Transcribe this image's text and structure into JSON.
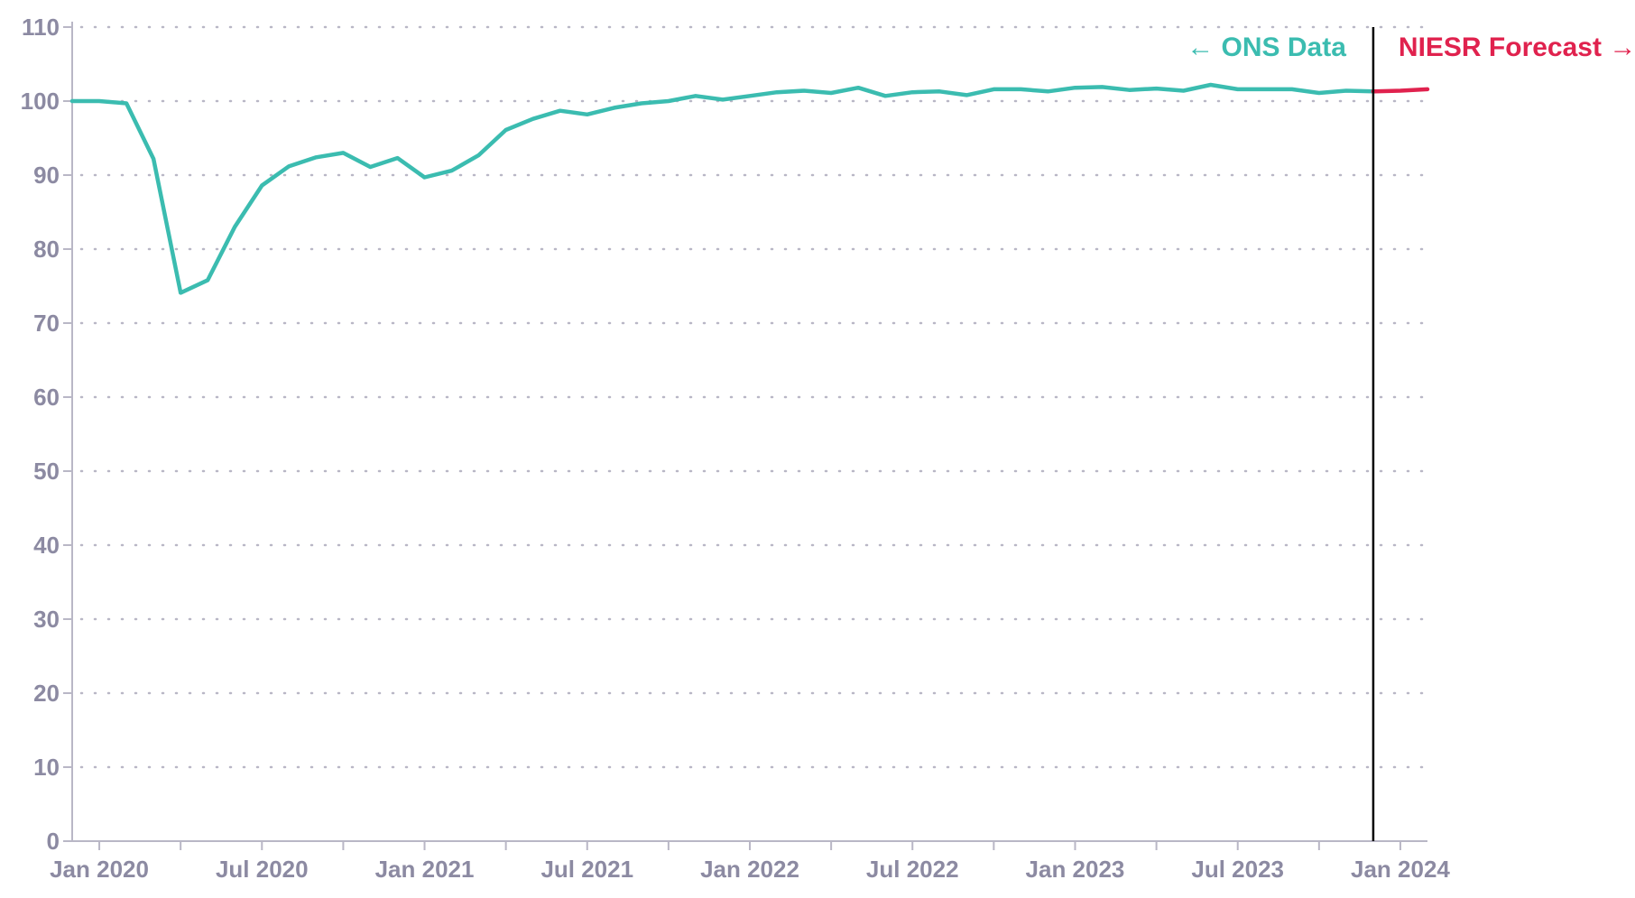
{
  "chart_data": {
    "type": "line",
    "title": "",
    "xlabel": "",
    "ylabel": "",
    "ylim": [
      0,
      110
    ],
    "yticks": [
      0,
      10,
      20,
      30,
      40,
      50,
      60,
      70,
      80,
      90,
      100,
      110
    ],
    "xlim": [
      "2019-12",
      "2024-02"
    ],
    "x_tick_labels": [
      {
        "date": "2020-01",
        "label": "Jan 2020"
      },
      {
        "date": "2020-07",
        "label": "Jul 2020"
      },
      {
        "date": "2021-01",
        "label": "Jan 2021"
      },
      {
        "date": "2021-07",
        "label": "Jul 2021"
      },
      {
        "date": "2022-01",
        "label": "Jan 2022"
      },
      {
        "date": "2022-07",
        "label": "Jul 2022"
      },
      {
        "date": "2023-01",
        "label": "Jan 2023"
      },
      {
        "date": "2023-07",
        "label": "Jul 2023"
      },
      {
        "date": "2024-01",
        "label": "Jan 2024"
      }
    ],
    "grid": "horizontal dotted",
    "divider_date": "2023-12",
    "colors": {
      "ons": "#3bbcb0",
      "forecast": "#e0224e",
      "axis": "#b9b7c6",
      "grid": "#b9b7c6",
      "tick_text": "#8c8aa2",
      "divider": "#000000"
    },
    "annotations": {
      "ons": "← ONS Data",
      "forecast": "NIESR Forecast →"
    },
    "series": [
      {
        "key": "ons",
        "x": [
          "2019-12",
          "2020-01",
          "2020-02",
          "2020-03",
          "2020-04",
          "2020-05",
          "2020-06",
          "2020-07",
          "2020-08",
          "2020-09",
          "2020-10",
          "2020-11",
          "2020-12",
          "2021-01",
          "2021-02",
          "2021-03",
          "2021-04",
          "2021-05",
          "2021-06",
          "2021-07",
          "2021-08",
          "2021-09",
          "2021-10",
          "2021-11",
          "2021-12",
          "2022-01",
          "2022-02",
          "2022-03",
          "2022-04",
          "2022-05",
          "2022-06",
          "2022-07",
          "2022-08",
          "2022-09",
          "2022-10",
          "2022-11",
          "2022-12",
          "2023-01",
          "2023-02",
          "2023-03",
          "2023-04",
          "2023-05",
          "2023-06",
          "2023-07",
          "2023-08",
          "2023-09",
          "2023-10",
          "2023-11",
          "2023-12"
        ],
        "y": [
          100.0,
          100.0,
          99.7,
          92.2,
          74.1,
          75.8,
          83.0,
          88.6,
          91.2,
          92.4,
          93.0,
          91.1,
          92.3,
          89.7,
          90.6,
          92.7,
          96.1,
          97.6,
          98.7,
          98.2,
          99.1,
          99.7,
          100.0,
          100.7,
          100.2,
          100.7,
          101.2,
          101.4,
          101.1,
          101.8,
          100.7,
          101.2,
          101.3,
          100.8,
          101.6,
          101.6,
          101.3,
          101.8,
          101.9,
          101.5,
          101.7,
          101.4,
          102.2,
          101.6,
          101.6,
          101.6,
          101.1,
          101.4,
          101.3
        ]
      },
      {
        "key": "forecast",
        "x": [
          "2023-12",
          "2024-01",
          "2024-02"
        ],
        "y": [
          101.3,
          101.4,
          101.6
        ]
      }
    ]
  }
}
